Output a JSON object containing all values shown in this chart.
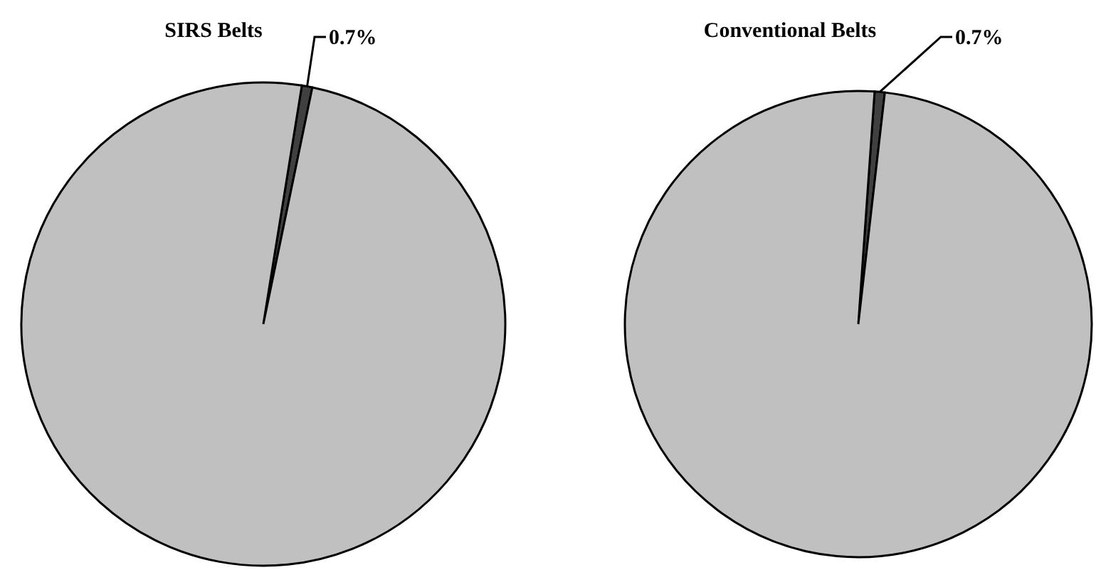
{
  "chart_data": [
    {
      "type": "pie",
      "title": "SIRS Belts",
      "categories": [
        null,
        null
      ],
      "values": [
        0.7,
        99.3
      ],
      "colors": [
        "#404040",
        "#c0c0c0"
      ],
      "value_labels": [
        "0.7%",
        null
      ]
    },
    {
      "type": "pie",
      "title": "Conventional Belts",
      "categories": [
        null,
        null
      ],
      "values": [
        0.7,
        99.3
      ],
      "colors": [
        "#404040",
        "#c0c0c0"
      ],
      "value_labels": [
        "0.7%",
        null
      ]
    }
  ]
}
